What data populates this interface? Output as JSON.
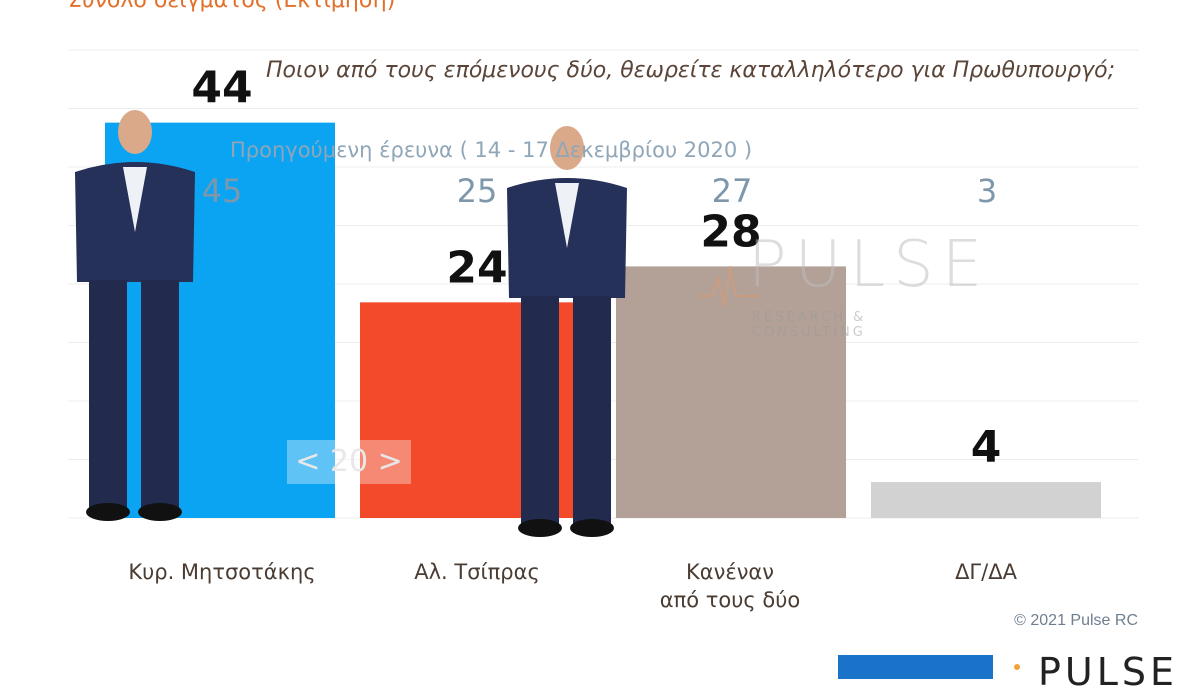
{
  "header": {
    "title_partial": "Σύνολο δείγματος   (Εκτίμηση)",
    "question": "Ποιον από τους επόμενους δύο, θεωρείτε καταλληλότερο για Πρωθυπουργό;",
    "previous_survey_label": "Προηγούμενη έρευνα  ( 14 - 17 Δεκεμβρίου  2020 )"
  },
  "watermark": {
    "word": "PULSE",
    "subtitle": "RESEARCH & CONSULTING"
  },
  "difference_badge": "< 20 >",
  "copyright": "© 2021 Pulse RC",
  "footer_logo": "PULSE",
  "colors": {
    "mitsotakis": "#0aa4f2",
    "tsipras": "#f24a2a",
    "none": "#b3a198",
    "dk": "#d2d2d2",
    "previous_values": "#7f97aa",
    "title": "#e2702a"
  },
  "chart_data": {
    "type": "bar",
    "categories": [
      "Κυρ. Μητσοτάκης",
      "Αλ. Τσίπρας",
      "Κανέναν από τους δύο",
      "ΔΓ/ΔΑ"
    ],
    "category_lines": [
      [
        "Κυρ. Μητσοτάκης"
      ],
      [
        "Αλ. Τσίπρας"
      ],
      [
        "Κανέναν",
        "από τους δύο"
      ],
      [
        "ΔΓ/ΔΑ"
      ]
    ],
    "series": [
      {
        "values": [
          44,
          24,
          28,
          4
        ]
      },
      {
        "name": "Προηγούμενη έρευνα",
        "values": [
          45,
          25,
          27,
          3
        ]
      }
    ],
    "ylim": [
      0,
      50
    ],
    "grid": true
  }
}
